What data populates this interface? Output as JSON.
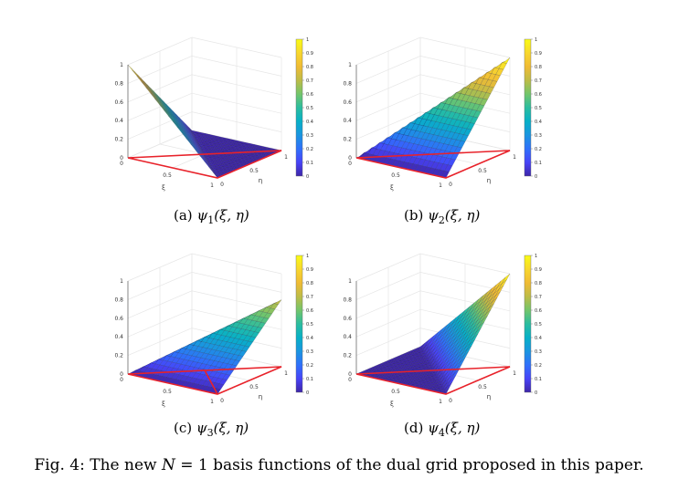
{
  "panels": [
    {
      "id": "a",
      "label": "(a)",
      "func": "ψ",
      "sub": "1",
      "args": "(ξ, η)"
    },
    {
      "id": "b",
      "label": "(b)",
      "func": "ψ",
      "sub": "2",
      "args": "(ξ, η)"
    },
    {
      "id": "c",
      "label": "(c)",
      "func": "ψ",
      "sub": "3",
      "args": "(ξ, η)"
    },
    {
      "id": "d",
      "label": "(d)",
      "func": "ψ",
      "sub": "4",
      "args": "(ξ, η)"
    }
  ],
  "axes": {
    "z_ticks": [
      "0",
      "0.2",
      "0.4",
      "0.6",
      "0.8",
      "1"
    ],
    "z_zero_lower": "0",
    "xi_ticks": [
      "0.5",
      "1"
    ],
    "eta_ticks": [
      "0",
      "0.5",
      "1"
    ],
    "xi_label": "ξ",
    "eta_label": "η"
  },
  "colorbar": {
    "ticks": [
      "0",
      "0.1",
      "0.2",
      "0.3",
      "0.4",
      "0.5",
      "0.6",
      "0.7",
      "0.8",
      "0.9",
      "1"
    ],
    "colors": [
      "#3e26a8",
      "#4743f8",
      "#2f70fa",
      "#1a95e0",
      "#07b0c7",
      "#2bbd9f",
      "#73c56b",
      "#bebc47",
      "#f0bb34",
      "#f8d72e",
      "#f9fb15"
    ]
  },
  "outline_color": "#e8222a",
  "caption": {
    "prefix": "Fig. 4: The new ",
    "math": "N",
    "eq": " = 1",
    "rest": " basis functions of the dual grid proposed in this paper."
  }
}
